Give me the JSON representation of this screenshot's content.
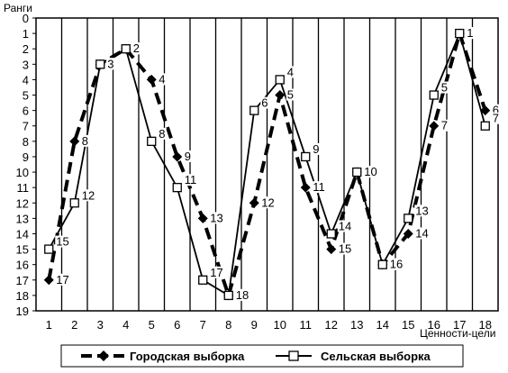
{
  "chart_data": {
    "type": "line",
    "ylabel": "Ранги",
    "xlabel": "Ценности-цели",
    "categories": [
      "1",
      "2",
      "3",
      "4",
      "5",
      "6",
      "7",
      "8",
      "9",
      "10",
      "11",
      "12",
      "13",
      "14",
      "15",
      "16",
      "17",
      "18"
    ],
    "yticks": [
      "0",
      "1",
      "2",
      "3",
      "4",
      "5",
      "6",
      "7",
      "8",
      "9",
      "10",
      "11",
      "12",
      "13",
      "14",
      "15",
      "16",
      "17",
      "18",
      "19"
    ],
    "ylim": [
      0,
      19
    ],
    "y_inverted": true,
    "grid": "vertical",
    "legend_position": "bottom",
    "series": [
      {
        "name": "Городская выборка",
        "marker": "filled-diamond",
        "line": "dashed",
        "values": [
          17,
          8,
          3,
          2,
          4,
          9,
          13,
          18,
          12,
          5,
          11,
          15,
          10,
          16,
          14,
          7,
          1,
          6
        ],
        "labels": [
          "17",
          "8",
          "3",
          "2",
          "4",
          "9",
          "13",
          "18",
          "12",
          "5",
          "11",
          "15",
          "10",
          "16",
          "14",
          "7",
          "1",
          "6"
        ]
      },
      {
        "name": "Сельская выборка",
        "marker": "open-square",
        "line": "solid",
        "values": [
          15,
          12,
          3,
          2,
          8,
          11,
          17,
          18,
          6,
          4,
          9,
          14,
          10,
          16,
          13,
          5,
          1,
          7
        ],
        "labels": [
          "15",
          "12",
          "3",
          "2",
          "8",
          "11",
          "17",
          "18",
          "6",
          "4",
          "9",
          "14",
          "10",
          "16",
          "13",
          "5",
          "1",
          "7"
        ]
      }
    ],
    "colors": {
      "line": "#000000",
      "grid": "#000000",
      "background": "#ffffff"
    }
  }
}
